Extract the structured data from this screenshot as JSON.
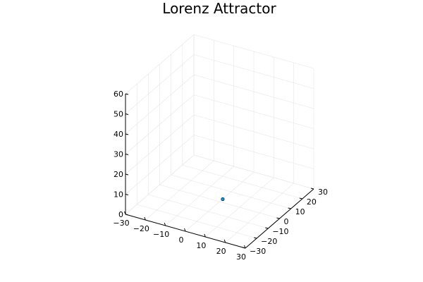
{
  "chart_data": {
    "type": "scatter",
    "dimensions": 3,
    "title": "Lorenz Attractor",
    "xlim": [
      -30,
      30
    ],
    "ylim": [
      -30,
      30
    ],
    "zlim": [
      0,
      60
    ],
    "xticks": [
      "−30",
      "−20",
      "−10",
      "0",
      "10",
      "20",
      "30"
    ],
    "yticks": [
      "−30",
      "−20",
      "−10",
      "0",
      "10",
      "20",
      "30"
    ],
    "zticks": [
      "0",
      "10",
      "20",
      "30",
      "40",
      "50",
      "60"
    ],
    "xtick_values": [
      -30,
      -20,
      -10,
      0,
      10,
      20,
      30
    ],
    "ytick_values": [
      -30,
      -20,
      -10,
      0,
      10,
      20,
      30
    ],
    "ztick_values": [
      0,
      10,
      20,
      30,
      40,
      50,
      60
    ],
    "grid": true,
    "legend": "none",
    "points": [
      {
        "x": 1,
        "y": 1,
        "z": 1
      }
    ],
    "colors": {
      "marker": "#009af9",
      "marker_stroke": "#000000",
      "grid": "#e6e6e6",
      "axis": "#000000"
    }
  }
}
